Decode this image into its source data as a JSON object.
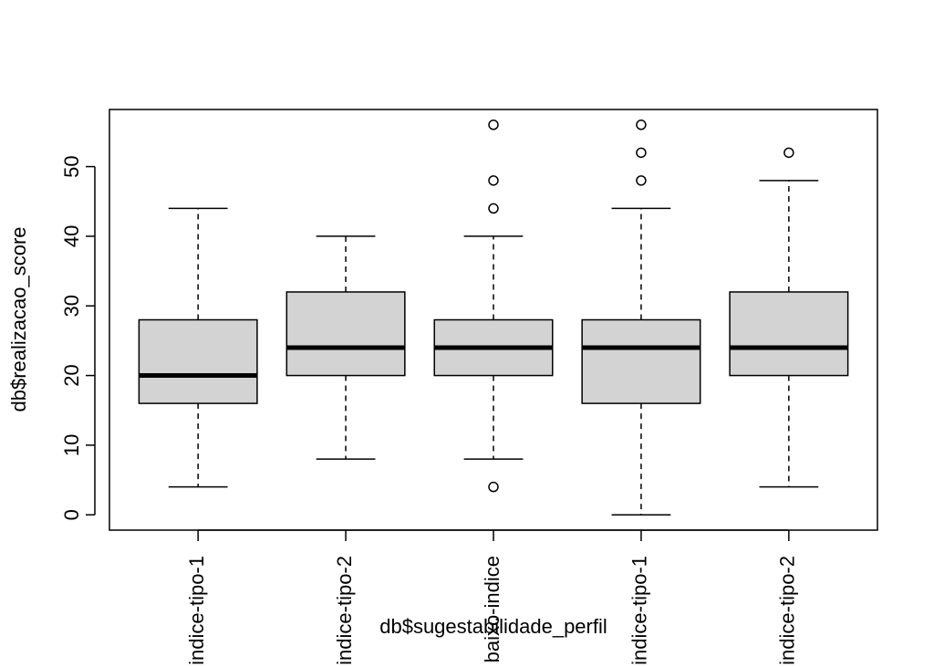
{
  "chart_data": {
    "type": "box",
    "xlabel": "db$sugestabilidade_perfil",
    "ylabel": "db$realizacao_score",
    "ylim": [
      -2.2,
      58.2
    ],
    "yticks": [
      0,
      10,
      20,
      30,
      40,
      50
    ],
    "grid": false,
    "box_fill": "#d3d3d3",
    "categories": [
      "indice-tipo-1",
      "indice-tipo-2",
      "baixo-indice",
      "indice-tipo-1",
      "indice-tipo-2"
    ],
    "boxes": [
      {
        "category": "indice-tipo-1",
        "whisker_low": 4,
        "q1": 16,
        "median": 20,
        "q3": 28,
        "whisker_high": 44,
        "outliers": []
      },
      {
        "category": "indice-tipo-2",
        "whisker_low": 8,
        "q1": 20,
        "median": 24,
        "q3": 32,
        "whisker_high": 40,
        "outliers": []
      },
      {
        "category": "baixo-indice",
        "whisker_low": 8,
        "q1": 20,
        "median": 24,
        "q3": 28,
        "whisker_high": 40,
        "outliers": [
          4,
          44,
          48,
          56
        ]
      },
      {
        "category": "indice-tipo-1",
        "whisker_low": 0,
        "q1": 16,
        "median": 24,
        "q3": 28,
        "whisker_high": 44,
        "outliers": [
          48,
          52,
          56
        ]
      },
      {
        "category": "indice-tipo-2",
        "whisker_low": 4,
        "q1": 20,
        "median": 24,
        "q3": 32,
        "whisker_high": 48,
        "outliers": [
          52
        ]
      }
    ]
  }
}
